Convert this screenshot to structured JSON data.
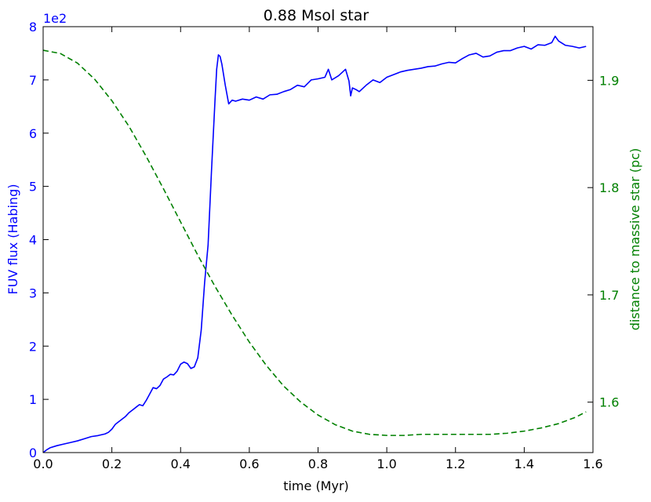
{
  "chart_data": {
    "type": "line",
    "title": "0.88 Msol star",
    "xlabel": "time (Myr)",
    "xlim": [
      0.0,
      1.6
    ],
    "x_ticks": [
      "0.0",
      "0.2",
      "0.4",
      "0.6",
      "0.8",
      "1.0",
      "1.2",
      "1.4",
      "1.6"
    ],
    "grid": false,
    "left_axis": {
      "label": "FUV flux (Habing)",
      "color": "#0000ff",
      "ylim": [
        0,
        8
      ],
      "scale_label": "1e2",
      "ticks": [
        "0",
        "1",
        "2",
        "3",
        "4",
        "5",
        "6",
        "7",
        "8"
      ]
    },
    "right_axis": {
      "label": "distance to massive star (pc)",
      "color": "#008000",
      "ylim": [
        1.553,
        1.95
      ],
      "ticks": [
        "1.6",
        "1.7",
        "1.8",
        "1.9"
      ]
    },
    "series": [
      {
        "axis": "left",
        "color": "#0000ff",
        "style": "solid",
        "x": [
          0.0,
          0.01,
          0.02,
          0.04,
          0.06,
          0.08,
          0.1,
          0.12,
          0.14,
          0.16,
          0.18,
          0.19,
          0.2,
          0.21,
          0.22,
          0.24,
          0.25,
          0.26,
          0.27,
          0.28,
          0.29,
          0.3,
          0.31,
          0.32,
          0.33,
          0.34,
          0.35,
          0.36,
          0.37,
          0.38,
          0.39,
          0.4,
          0.41,
          0.42,
          0.43,
          0.44,
          0.45,
          0.46,
          0.47,
          0.48,
          0.49,
          0.5,
          0.505,
          0.51,
          0.515,
          0.52,
          0.53,
          0.54,
          0.55,
          0.56,
          0.58,
          0.6,
          0.62,
          0.64,
          0.66,
          0.68,
          0.7,
          0.72,
          0.74,
          0.76,
          0.78,
          0.8,
          0.82,
          0.83,
          0.84,
          0.86,
          0.88,
          0.89,
          0.895,
          0.9,
          0.91,
          0.92,
          0.94,
          0.96,
          0.98,
          1.0,
          1.02,
          1.04,
          1.06,
          1.08,
          1.1,
          1.12,
          1.14,
          1.16,
          1.18,
          1.2,
          1.22,
          1.24,
          1.26,
          1.28,
          1.3,
          1.32,
          1.34,
          1.36,
          1.38,
          1.4,
          1.42,
          1.44,
          1.46,
          1.48,
          1.49,
          1.5,
          1.52,
          1.54,
          1.56,
          1.58
        ],
        "y": [
          0.0,
          0.05,
          0.09,
          0.13,
          0.16,
          0.19,
          0.22,
          0.26,
          0.3,
          0.32,
          0.35,
          0.38,
          0.44,
          0.53,
          0.58,
          0.68,
          0.75,
          0.8,
          0.85,
          0.9,
          0.88,
          0.98,
          1.1,
          1.22,
          1.2,
          1.26,
          1.38,
          1.42,
          1.47,
          1.46,
          1.53,
          1.66,
          1.7,
          1.67,
          1.58,
          1.61,
          1.78,
          2.3,
          3.2,
          3.9,
          5.3,
          6.6,
          7.2,
          7.47,
          7.44,
          7.3,
          6.9,
          6.55,
          6.62,
          6.6,
          6.64,
          6.62,
          6.68,
          6.64,
          6.72,
          6.73,
          6.78,
          6.82,
          6.9,
          6.87,
          7.0,
          7.02,
          7.05,
          7.2,
          7.0,
          7.08,
          7.2,
          6.98,
          6.7,
          6.85,
          6.82,
          6.78,
          6.9,
          7.0,
          6.95,
          7.05,
          7.1,
          7.15,
          7.18,
          7.2,
          7.22,
          7.25,
          7.26,
          7.3,
          7.33,
          7.32,
          7.4,
          7.47,
          7.5,
          7.43,
          7.45,
          7.52,
          7.55,
          7.55,
          7.6,
          7.63,
          7.58,
          7.66,
          7.65,
          7.7,
          7.82,
          7.73,
          7.65,
          7.63,
          7.6,
          7.63
        ]
      },
      {
        "axis": "right",
        "color": "#008000",
        "style": "dashed",
        "x": [
          0.0,
          0.05,
          0.1,
          0.15,
          0.2,
          0.25,
          0.3,
          0.35,
          0.4,
          0.45,
          0.5,
          0.55,
          0.6,
          0.65,
          0.7,
          0.75,
          0.8,
          0.85,
          0.9,
          0.95,
          1.0,
          1.05,
          1.1,
          1.15,
          1.2,
          1.25,
          1.28,
          1.3,
          1.35,
          1.4,
          1.45,
          1.5,
          1.55,
          1.58
        ],
        "y": [
          1.928,
          1.925,
          1.916,
          1.901,
          1.881,
          1.857,
          1.829,
          1.799,
          1.768,
          1.737,
          1.708,
          1.681,
          1.656,
          1.634,
          1.615,
          1.6,
          1.588,
          1.579,
          1.573,
          1.57,
          1.569,
          1.569,
          1.57,
          1.57,
          1.57,
          1.57,
          1.57,
          1.57,
          1.571,
          1.573,
          1.576,
          1.58,
          1.586,
          1.591
        ]
      }
    ]
  }
}
